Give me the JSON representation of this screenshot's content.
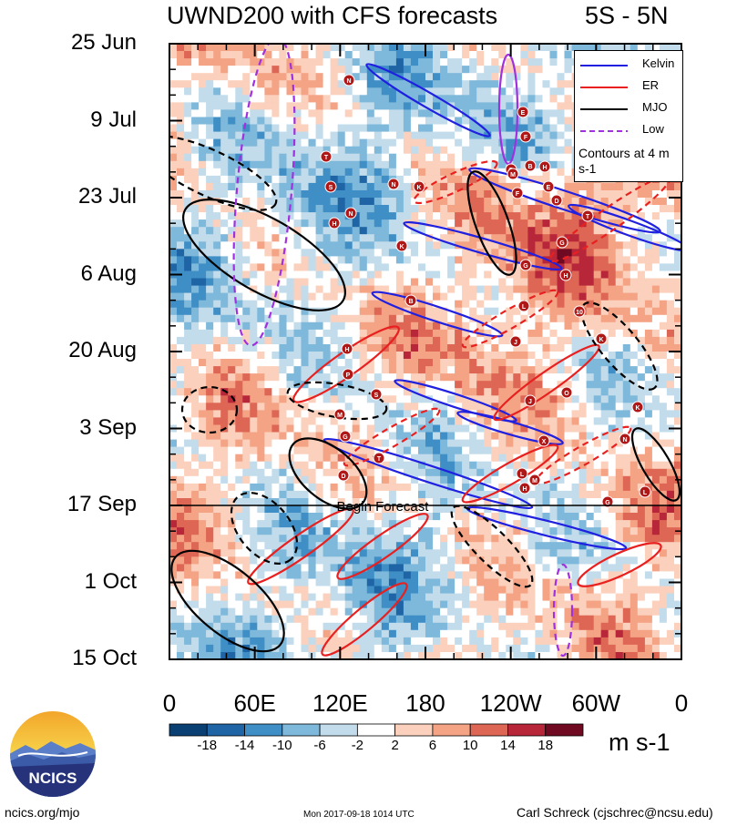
{
  "header": {
    "title": "UWND200 with CFS forecasts",
    "region": "5S - 5N"
  },
  "chart_data": {
    "type": "heatmap",
    "title": "UWND200 with CFS forecasts",
    "subtitle": "5S - 5N",
    "x_ticks": [
      "0",
      "60E",
      "120E",
      "180",
      "120W",
      "60W",
      "0"
    ],
    "y_ticks": [
      "25 Jun",
      "9 Jul",
      "23 Jul",
      "6 Aug",
      "20 Aug",
      "3 Sep",
      "17 Sep",
      "1 Oct",
      "15 Oct"
    ],
    "colorbar_labels": [
      "-18",
      "-14",
      "-10",
      "-6",
      "-2",
      "2",
      "6",
      "10",
      "14",
      "18"
    ],
    "colorbar_colors": [
      "#0a3f73",
      "#1f65a6",
      "#3f8fc6",
      "#7eb8da",
      "#c2dcec",
      "#ffffff",
      "#fbd0bc",
      "#f4a385",
      "#de6654",
      "#b8263a",
      "#6f0a22"
    ],
    "units": "m s-1",
    "annotation": "Begin Forecast",
    "legend": [
      {
        "name": "Kelvin",
        "color": "#2020e0"
      },
      {
        "name": "ER",
        "color": "#e82020"
      },
      {
        "name": "MJO",
        "color": "#000000"
      },
      {
        "name": "Low",
        "color": "#a030e0"
      }
    ],
    "legend_note": "Contours at 4 m s-1",
    "legend_placement": "top-right",
    "cyclone_markers": [
      "N",
      "T",
      "S",
      "K",
      "H",
      "N",
      "N",
      "K",
      "B",
      "H",
      "P",
      "S",
      "M",
      "G",
      "T",
      "D",
      "E",
      "F",
      "G",
      "B",
      "F",
      "E",
      "G",
      "G",
      "H",
      "L",
      "10",
      "K",
      "J",
      "J",
      "O",
      "X",
      "N",
      "K",
      "L",
      "M",
      "H",
      "G",
      "L",
      "M",
      "H",
      "D",
      "T"
    ]
  },
  "footer": {
    "source": "ncics.org/mjo",
    "timestamp": "Mon 2017-09-18 1014 UTC",
    "author": "Carl Schreck (cjschrec@ncsu.edu)"
  },
  "logo": {
    "text": "NCICS"
  }
}
